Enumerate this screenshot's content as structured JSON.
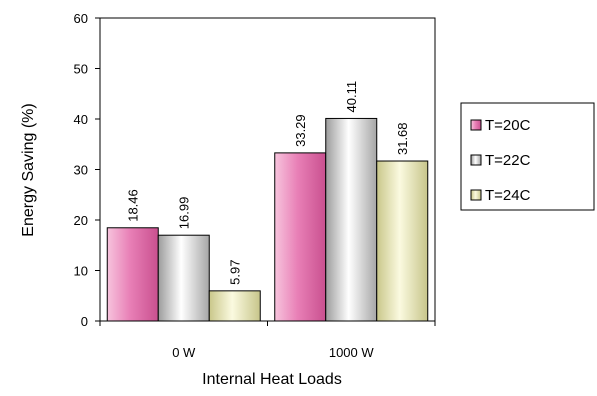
{
  "chart_data": {
    "type": "bar",
    "title": "",
    "xlabel": "Internal Heat Loads",
    "ylabel": "Energy Saving (%)",
    "categories": [
      "0 W",
      "1000 W"
    ],
    "ylim": [
      0,
      60
    ],
    "yticks": [
      0,
      10,
      20,
      30,
      40,
      50,
      60
    ],
    "grid": false,
    "legend_position": "right",
    "series": [
      {
        "name": "T=20C",
        "values": [
          18.46,
          33.29
        ],
        "value_labels": [
          "18.46",
          "33.29"
        ],
        "color": "#e87fb6"
      },
      {
        "name": "T=22C",
        "values": [
          16.99,
          40.11
        ],
        "value_labels": [
          "16.99",
          "40.11"
        ],
        "color": "#e6e6e6"
      },
      {
        "name": "T=24C",
        "values": [
          5.97,
          31.68
        ],
        "value_labels": [
          "5.97",
          "31.68"
        ],
        "color": "#f0efb8"
      }
    ]
  }
}
